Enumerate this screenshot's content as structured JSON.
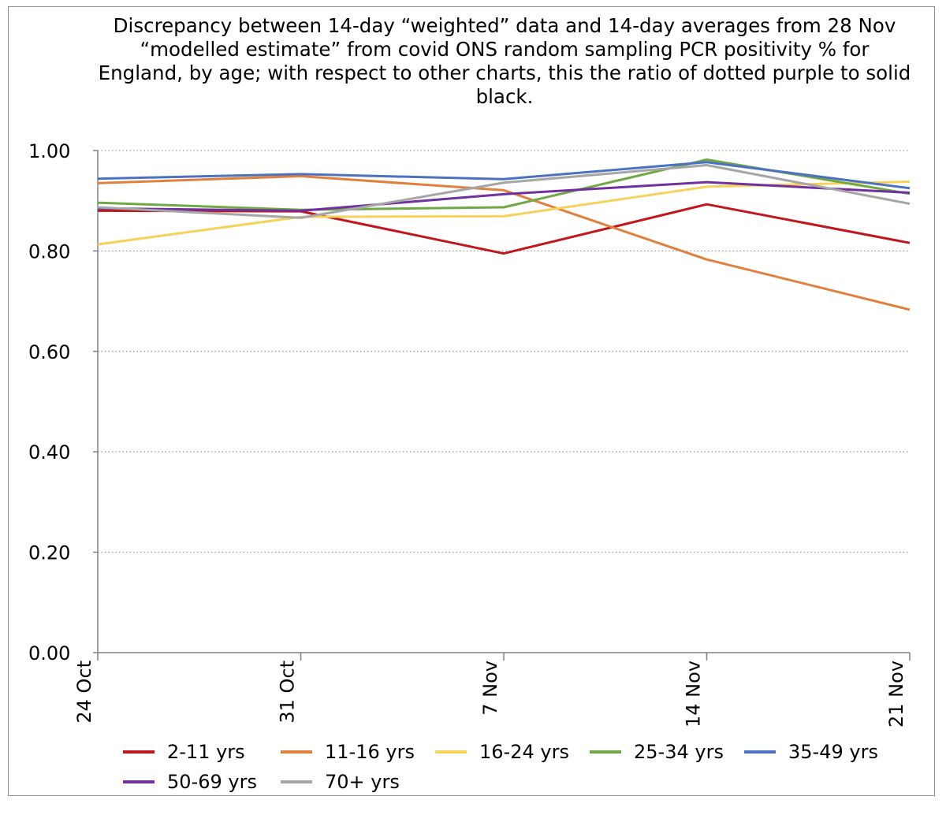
{
  "chart_data": {
    "type": "line",
    "title": "Discrepancy between 14-day “weighted” data and 14-day averages from 28 Nov “modelled estimate” from covid ONS random sampling PCR positivity % for England, by age; with respect to other charts, this the ratio of dotted purple to solid black.",
    "xlabel": "",
    "ylabel": "",
    "categories": [
      "24 Oct",
      "31 Oct",
      "7 Nov",
      "14 Nov",
      "21 Nov"
    ],
    "yticks": [
      "0.00",
      "0.20",
      "0.40",
      "0.60",
      "0.80",
      "1.00"
    ],
    "ylim": [
      0,
      1
    ],
    "grid": "horizontal dotted",
    "legend": "bottom",
    "series": [
      {
        "name": "2-11 yrs",
        "color": "#c0161c",
        "values": [
          0.88,
          0.879,
          0.795,
          0.893,
          0.816
        ]
      },
      {
        "name": "11-16 yrs",
        "color": "#e0803c",
        "values": [
          0.935,
          0.949,
          0.921,
          0.783,
          0.683
        ]
      },
      {
        "name": "16-24 yrs",
        "color": "#f7d25a",
        "values": [
          0.813,
          0.868,
          0.869,
          0.928,
          0.938
        ]
      },
      {
        "name": "25-34 yrs",
        "color": "#70a844",
        "values": [
          0.896,
          0.882,
          0.887,
          0.982,
          0.914
        ]
      },
      {
        "name": "35-49 yrs",
        "color": "#4a72c0",
        "values": [
          0.944,
          0.953,
          0.943,
          0.977,
          0.925
        ]
      },
      {
        "name": "50-69 yrs",
        "color": "#7030a0",
        "values": [
          0.885,
          0.88,
          0.913,
          0.937,
          0.916
        ]
      },
      {
        "name": "70+ yrs",
        "color": "#a6a6a6",
        "values": [
          0.887,
          0.866,
          0.936,
          0.971,
          0.894
        ]
      }
    ]
  }
}
